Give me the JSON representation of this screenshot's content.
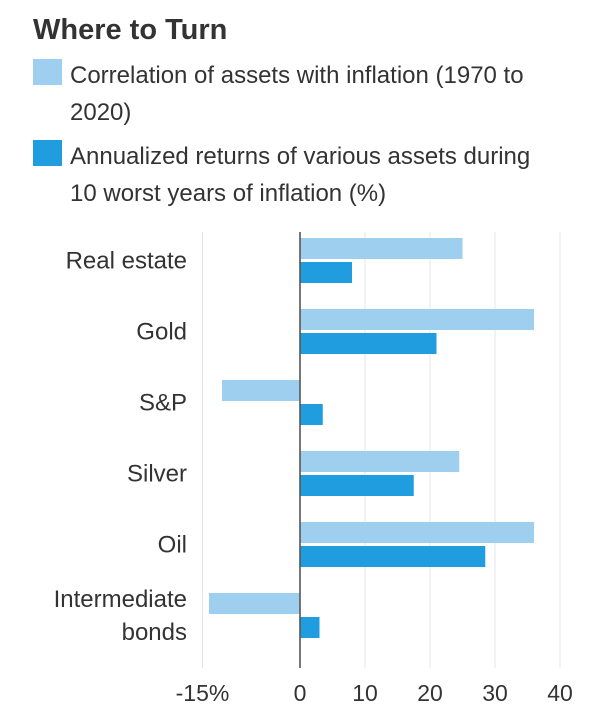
{
  "chart_data": {
    "type": "bar",
    "orientation": "horizontal",
    "title": "Where to Turn",
    "categories": [
      "Real estate",
      "Gold",
      "S&P",
      "Silver",
      "Oil",
      "Intermediate bonds"
    ],
    "category_lines": [
      [
        "Real estate"
      ],
      [
        "Gold"
      ],
      [
        "S&P"
      ],
      [
        "Silver"
      ],
      [
        "Oil"
      ],
      [
        "Intermediate",
        "bonds"
      ]
    ],
    "series": [
      {
        "name": "Correlation of assets with inflation (1970 to 2020)",
        "color": "#9ecfef",
        "values": [
          25,
          36,
          -12,
          24.5,
          36,
          -14
        ]
      },
      {
        "name": "Annualized returns of various assets during 10 worst years of inflation (%)",
        "color": "#1f9ddf",
        "values": [
          8,
          21,
          3.5,
          17.5,
          28.5,
          3
        ]
      }
    ],
    "xlim": [
      -15,
      40
    ],
    "ticks": [
      -15,
      0,
      10,
      20,
      30,
      40
    ],
    "tick_labels": [
      "-15%",
      "0",
      "10",
      "20",
      "30",
      "40"
    ],
    "grid": true
  },
  "legend": {
    "items": [
      {
        "text": "Correlation of assets with inflation (1970 to 2020)",
        "color": "#9ecfef"
      },
      {
        "text": "Annualized returns of various assets during 10 worst years of inflation (%)",
        "color": "#1f9ddf"
      }
    ]
  }
}
